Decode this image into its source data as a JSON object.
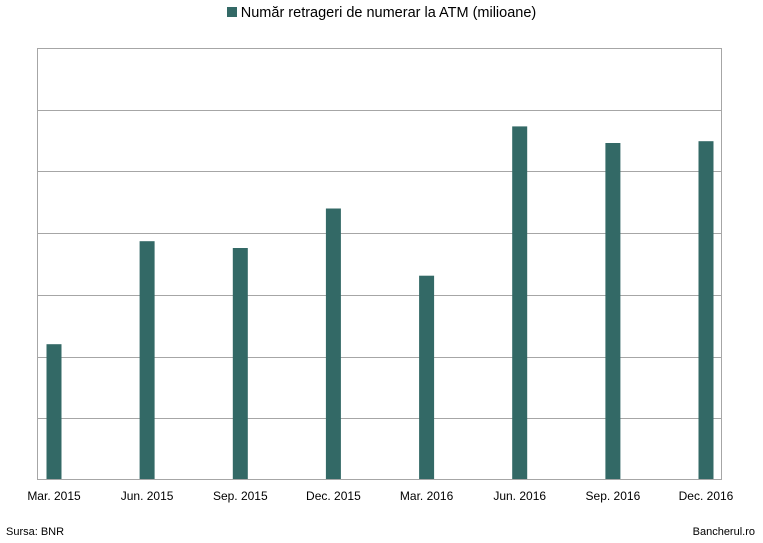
{
  "chart_data": {
    "type": "bar",
    "categories": [
      "Mar. 2015",
      "Jun. 2015",
      "Sep. 2015",
      "Dec. 2015",
      "Mar. 2016",
      "Jun. 2016",
      "Sep. 2016",
      "Dec. 2016"
    ],
    "series": [
      {
        "name": "Număr retrageri de numerar la ATM (milioane)",
        "color": "#336966",
        "values": [
          2.2,
          3.87,
          3.76,
          4.4,
          3.31,
          5.73,
          5.46,
          5.49
        ]
      }
    ],
    "ylim": [
      0,
      7
    ],
    "grid": true,
    "legend_position": "top",
    "y_tick_labels_shown": false
  },
  "footer": {
    "source": "Sursa: BNR",
    "credit": "Bancherul.ro"
  }
}
